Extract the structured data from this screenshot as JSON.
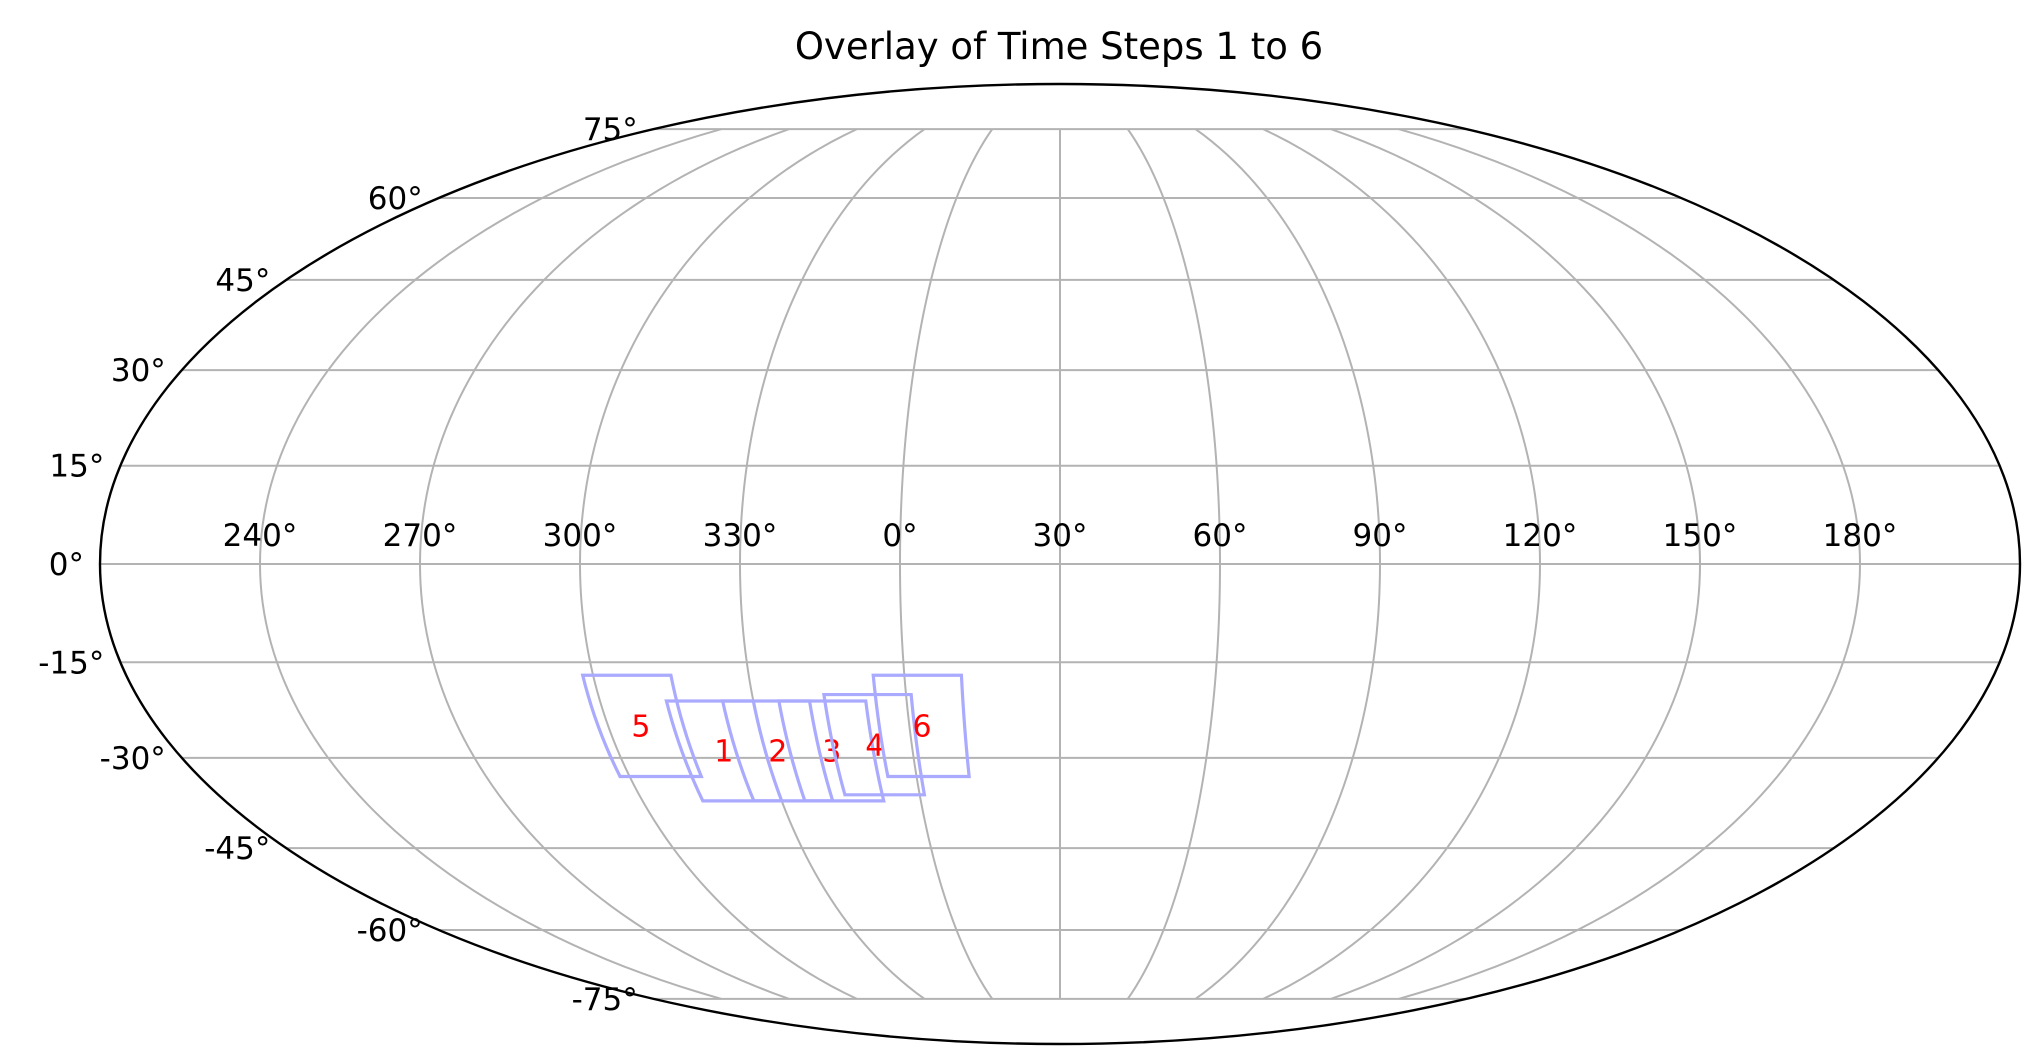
{
  "chart_data": {
    "type": "map",
    "projection": "mollweide",
    "title": "Overlay of Time Steps 1 to 6",
    "grid": true,
    "colors": {
      "outline": "#000000",
      "grid": "#b3b3b3",
      "footprint": "#aaaaff",
      "step_label": "#ff0000"
    },
    "longitude_ticks": [
      {
        "value": -120,
        "label": "240°"
      },
      {
        "value": -90,
        "label": "270°"
      },
      {
        "value": -60,
        "label": "300°"
      },
      {
        "value": -30,
        "label": "330°"
      },
      {
        "value": 0,
        "label": "0°"
      },
      {
        "value": 30,
        "label": "30°"
      },
      {
        "value": 60,
        "label": "60°"
      },
      {
        "value": 90,
        "label": "90°"
      },
      {
        "value": 120,
        "label": "120°"
      },
      {
        "value": 150,
        "label": "150°"
      },
      {
        "value": 180,
        "label": "180°"
      }
    ],
    "latitude_ticks": [
      {
        "value": 75,
        "label": "75°"
      },
      {
        "value": 60,
        "label": "60°"
      },
      {
        "value": 45,
        "label": "45°"
      },
      {
        "value": 30,
        "label": "30°"
      },
      {
        "value": 15,
        "label": "15°"
      },
      {
        "value": 0,
        "label": "0°"
      },
      {
        "value": -15,
        "label": "-15°"
      },
      {
        "value": -30,
        "label": "-30°"
      },
      {
        "value": -45,
        "label": "-45°"
      },
      {
        "value": -60,
        "label": "-60°"
      },
      {
        "value": -75,
        "label": "-75°"
      }
    ],
    "footprints": [
      {
        "label": "1",
        "lon_range": [
          -77,
          -60
        ],
        "lat_range": [
          -37,
          -21
        ]
      },
      {
        "label": "2",
        "lon_range": [
          -66,
          -49
        ],
        "lat_range": [
          -37,
          -21
        ]
      },
      {
        "label": "3",
        "lon_range": [
          -55,
          -38
        ],
        "lat_range": [
          -37,
          -21
        ]
      },
      {
        "label": "4",
        "lon_range": [
          -46,
          -29
        ],
        "lat_range": [
          -36,
          -20
        ]
      },
      {
        "label": "5",
        "lon_range": [
          -92,
          -75
        ],
        "lat_range": [
          -33,
          -17
        ]
      },
      {
        "label": "6",
        "lon_range": [
          -36,
          -19
        ],
        "lat_range": [
          -33,
          -17
        ]
      }
    ]
  }
}
